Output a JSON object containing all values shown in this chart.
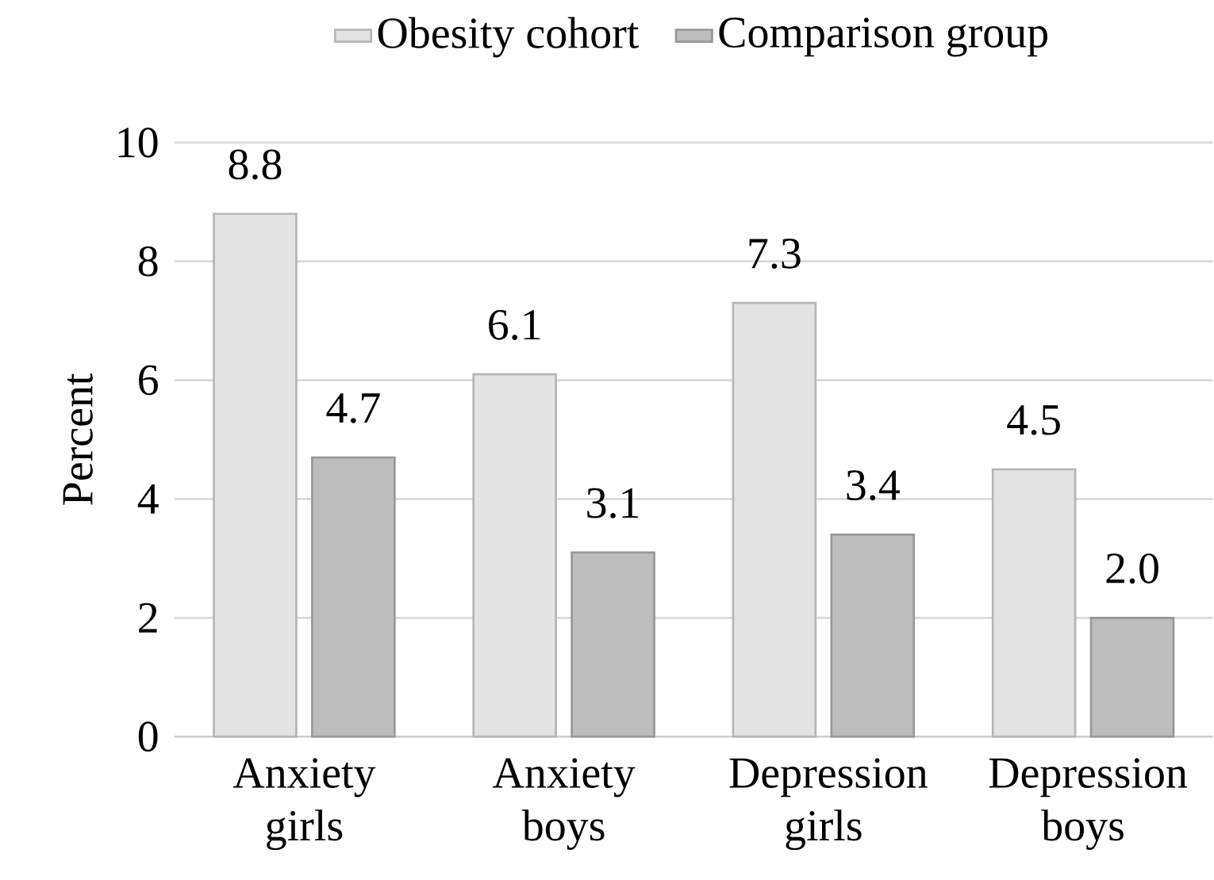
{
  "chart_data": {
    "type": "bar",
    "ylabel": "Percent",
    "categories": [
      "Anxiety girls",
      "Anxiety boys",
      "Depression girls",
      "Depression boys"
    ],
    "series": [
      {
        "name": "Obesity cohort",
        "color": "#e3e3e3",
        "values": [
          8.8,
          6.1,
          7.3,
          4.5
        ],
        "value_labels": [
          "8.8",
          "6.1",
          "7.3",
          "4.5"
        ]
      },
      {
        "name": "Comparison group",
        "color": "#bdbdbd",
        "values": [
          4.7,
          3.1,
          3.4,
          2.0
        ],
        "value_labels": [
          "4.7",
          "3.1",
          "3.4",
          "2.0"
        ]
      }
    ],
    "ylim": [
      0,
      10
    ],
    "yticks": [
      0,
      2,
      4,
      6,
      8,
      10
    ],
    "grid": "y",
    "legend": "top"
  }
}
